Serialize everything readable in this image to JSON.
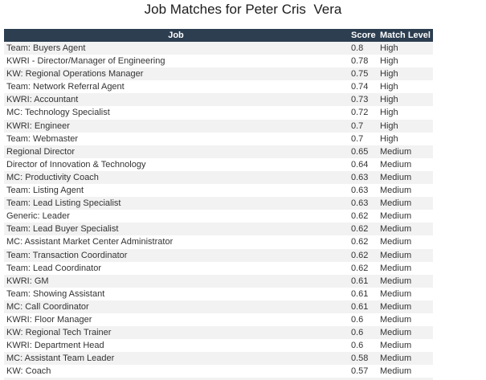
{
  "title": "Job Matches for Peter Cris  Vera",
  "colors": {
    "header_bg": "#2c3e50",
    "header_text": "#ffffff",
    "stripe": "#f2f2f2",
    "row_text": "#333333",
    "title_color": "#1c1c1c"
  },
  "table": {
    "columns": [
      "Job",
      "Score",
      "Match Level"
    ],
    "rows": [
      {
        "job": "Team: Buyers Agent",
        "score": "0.8",
        "match_level": "High"
      },
      {
        "job": "KWRI - Director/Manager of Engineering",
        "score": "0.78",
        "match_level": "High"
      },
      {
        "job": "KW: Regional Operations Manager",
        "score": "0.75",
        "match_level": "High"
      },
      {
        "job": "Team: Network Referral Agent",
        "score": "0.74",
        "match_level": "High"
      },
      {
        "job": "KWRI: Accountant",
        "score": "0.73",
        "match_level": "High"
      },
      {
        "job": "MC: Technology Specialist",
        "score": "0.72",
        "match_level": "High"
      },
      {
        "job": "KWRI: Engineer",
        "score": "0.7",
        "match_level": "High"
      },
      {
        "job": "Team: Webmaster",
        "score": "0.7",
        "match_level": "High"
      },
      {
        "job": "Regional Director",
        "score": "0.65",
        "match_level": "Medium"
      },
      {
        "job": "Director of Innovation & Technology",
        "score": "0.64",
        "match_level": "Medium"
      },
      {
        "job": "MC: Productivity Coach",
        "score": "0.63",
        "match_level": "Medium"
      },
      {
        "job": "Team: Listing Agent",
        "score": "0.63",
        "match_level": "Medium"
      },
      {
        "job": "Team: Lead Listing Specialist",
        "score": "0.63",
        "match_level": "Medium"
      },
      {
        "job": "Generic: Leader",
        "score": "0.62",
        "match_level": "Medium"
      },
      {
        "job": "Team: Lead Buyer Specialist",
        "score": "0.62",
        "match_level": "Medium"
      },
      {
        "job": "MC: Assistant Market Center Administrator",
        "score": "0.62",
        "match_level": "Medium"
      },
      {
        "job": "Team: Transaction Coordinator",
        "score": "0.62",
        "match_level": "Medium"
      },
      {
        "job": "Team: Lead Coordinator",
        "score": "0.62",
        "match_level": "Medium"
      },
      {
        "job": "KWRI: GM",
        "score": "0.61",
        "match_level": "Medium"
      },
      {
        "job": "Team: Showing Assistant",
        "score": "0.61",
        "match_level": "Medium"
      },
      {
        "job": "MC: Call Coordinator",
        "score": "0.61",
        "match_level": "Medium"
      },
      {
        "job": "KWRI: Floor Manager",
        "score": "0.6",
        "match_level": "Medium"
      },
      {
        "job": "KW: Regional Tech Trainer",
        "score": "0.6",
        "match_level": "Medium"
      },
      {
        "job": "KWRI: Department Head",
        "score": "0.6",
        "match_level": "Medium"
      },
      {
        "job": "MC: Assistant Team Leader",
        "score": "0.58",
        "match_level": "Medium"
      },
      {
        "job": "KW: Coach",
        "score": "0.57",
        "match_level": "Medium"
      }
    ]
  }
}
